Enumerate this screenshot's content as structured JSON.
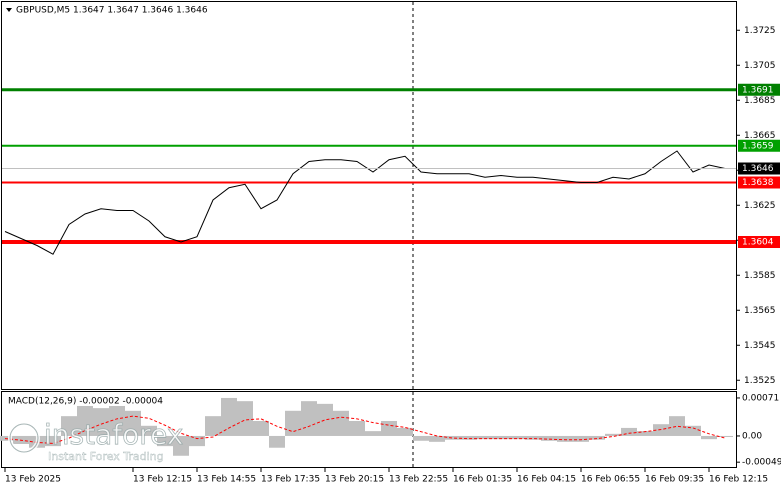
{
  "chart_data": [
    {
      "type": "line",
      "title": "GBPUSD,M5  1.3647 1.3647 1.3646 1.3646",
      "categories": [
        "13 Feb 2025",
        null,
        null,
        null,
        null,
        null,
        null,
        null,
        "13 Feb 12:15",
        null,
        null,
        null,
        "13 Feb 14:55",
        null,
        null,
        null,
        "13 Feb 17:35",
        null,
        null,
        null,
        "13 Feb 20:15",
        null,
        null,
        null,
        "13 Feb 22:55",
        null,
        null,
        null,
        "16 Feb 01:35",
        null,
        null,
        null,
        "16 Feb 04:15",
        null,
        null,
        null,
        "16 Feb 06:55",
        null,
        null,
        null,
        "16 Feb 09:35",
        null,
        null,
        null,
        "16 Feb 12:15",
        null
      ],
      "values": [
        1.361,
        1.3606,
        1.3602,
        1.3597,
        1.3614,
        1.362,
        1.3623,
        1.3622,
        1.3622,
        1.3616,
        1.3607,
        1.3604,
        1.3607,
        1.3628,
        1.3635,
        1.3637,
        1.3623,
        1.3628,
        1.3643,
        1.365,
        1.3651,
        1.3651,
        1.365,
        1.3644,
        1.3651,
        1.3653,
        1.3644,
        1.3643,
        1.3643,
        1.3643,
        1.3641,
        1.3642,
        1.3641,
        1.3641,
        1.364,
        1.3639,
        1.3638,
        1.3638,
        1.3641,
        1.364,
        1.3643,
        1.365,
        1.3656,
        1.3644,
        1.3648,
        1.3646
      ],
      "color": "#000000",
      "ylim": [
        1.352,
        1.374
      ],
      "yticks": [
        1.3525,
        1.3545,
        1.3565,
        1.3585,
        1.3605,
        1.3625,
        1.3645,
        1.3665,
        1.3685,
        1.3705,
        1.3725
      ],
      "grid": false,
      "levels": [
        {
          "value": 1.3691,
          "color": "#008000"
        },
        {
          "value": 1.3659,
          "color": "#00a000"
        },
        {
          "value": 1.3638,
          "color": "#ff0000"
        },
        {
          "value": 1.3604,
          "color": "#ff0000"
        }
      ],
      "current_price": 1.3646
    },
    {
      "type": "bar",
      "title": "MACD(12,26,9) -0.00002 -0.00004",
      "ylim": [
        -0.00058,
        0.00084
      ],
      "yticks": [
        -0.00049,
        {
          "value": 0,
          "label": "0.00"
        },
        0.00071
      ],
      "series": [
        {
          "color": "#c0c0c0",
          "values": [
            -9e-05,
            -0.00015,
            -0.00022,
            -0.00019,
            0.00037,
            0.00056,
            0.00052,
            0.00056,
            0.00047,
            0.00019,
            -0.00019,
            -0.00037,
            -0.00019,
            0.00037,
            0.00071,
            0.00065,
            0.00028,
            -0.00022,
            0.00047,
            0.00065,
            0.0006,
            0.00047,
            0.00028,
            9e-05,
            0.00028,
            0.00015,
            -9e-05,
            -0.00011,
            -7e-05,
            -7e-05,
            -6e-05,
            -6e-05,
            -6e-05,
            -7e-05,
            -9e-05,
            -0.00011,
            -0.00011,
            -7e-05,
            4e-05,
            0.00015,
            9e-05,
            0.00022,
            0.00037,
            0.00019,
            -6e-05,
            -2e-05
          ]
        },
        {
          "type": "line",
          "color": "#ff0000",
          "values": [
            -5e-05,
            -8e-05,
            -0.00012,
            -0.00014,
            -4e-05,
            0.0001,
            0.00022,
            0.00032,
            0.00037,
            0.00033,
            0.0002,
            5e-05,
            -5e-05,
            -2e-05,
            0.00015,
            0.0003,
            0.00032,
            0.00018,
            8e-05,
            0.00018,
            0.0003,
            0.00035,
            0.00032,
            0.00025,
            0.0002,
            0.00016,
            8e-05,
            0.0,
            -4e-05,
            -5e-05,
            -5e-05,
            -5e-05,
            -5e-05,
            -5e-05,
            -6e-05,
            -7e-05,
            -7e-05,
            -5e-05,
            -1e-05,
            5e-05,
            8e-05,
            0.00012,
            0.00018,
            0.00015,
            4e-05,
            -4e-05
          ]
        }
      ]
    }
  ],
  "watermark": {
    "name": "instaforex",
    "tagline": "Instant Forex Trading"
  }
}
